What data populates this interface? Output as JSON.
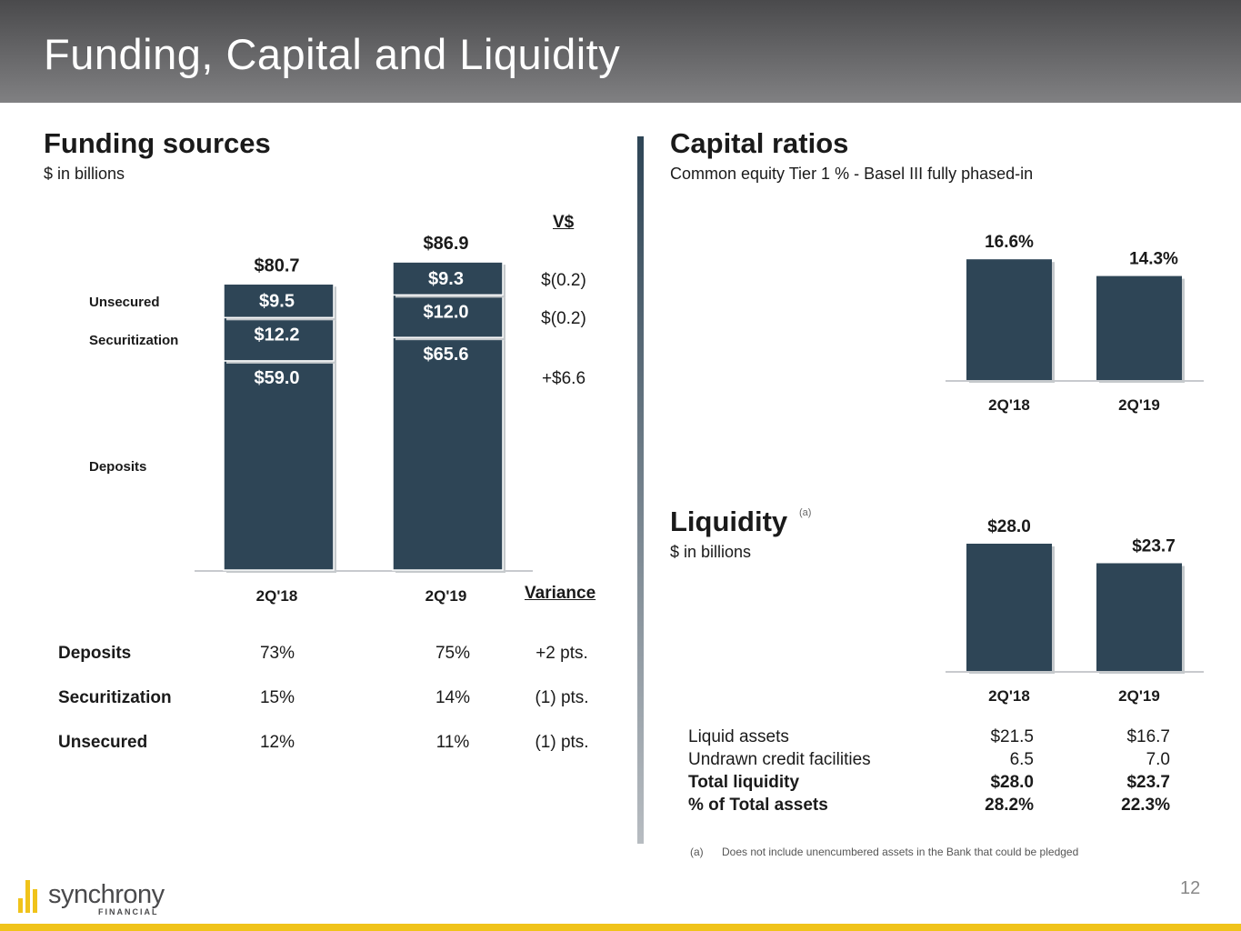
{
  "header": {
    "title": "Funding, Capital and Liquidity"
  },
  "funding": {
    "title": "Funding sources",
    "subtitle": "$ in billions",
    "v_label": "V$",
    "variance_header": "Variance",
    "table": [
      {
        "label": "Deposits",
        "values": [
          "73%",
          "75%"
        ],
        "variance": "+2 pts."
      },
      {
        "label": "Securitization",
        "values": [
          "15%",
          "14%"
        ],
        "variance": "(1) pts."
      },
      {
        "label": "Unsecured",
        "values": [
          "12%",
          "11%"
        ],
        "variance": "(1) pts."
      }
    ]
  },
  "capital": {
    "title": "Capital ratios",
    "subtitle": "Common equity Tier 1 % - Basel III fully phased-in"
  },
  "liquidity": {
    "title": "Liquidity",
    "title_note": "(a)",
    "subtitle": "$ in billions",
    "table": [
      {
        "label": "Liquid assets",
        "v1": "$21.5",
        "v2": "$16.7",
        "bold": false
      },
      {
        "label": "Undrawn credit facilities",
        "v1": "6.5",
        "v2": "7.0",
        "bold": false
      },
      {
        "label": "Total liquidity",
        "v1": "$28.0",
        "v2": "$23.7",
        "bold": true
      },
      {
        "label": "% of Total assets",
        "v1": "28.2%",
        "v2": "22.3%",
        "bold": true
      }
    ],
    "footnote_mark": "(a)",
    "footnote_text": "Does not include unencumbered assets in the Bank that could be pledged"
  },
  "footer": {
    "logo_text": "synchrony",
    "logo_sub": "FINANCIAL",
    "page_number": "12"
  },
  "colors": {
    "bar": "#2e4556",
    "accent": "#f0c31a"
  },
  "chart_data": [
    {
      "type": "bar",
      "stacked": true,
      "categories": [
        "2Q'18",
        "2Q'19"
      ],
      "series": [
        {
          "name": "Deposits",
          "values": [
            59.0,
            65.6
          ],
          "labels": [
            "$59.0",
            "$65.6"
          ]
        },
        {
          "name": "Securitization",
          "values": [
            12.2,
            12.0
          ],
          "labels": [
            "$12.2",
            "$12.0"
          ]
        },
        {
          "name": "Unsecured",
          "values": [
            9.5,
            9.3
          ],
          "labels": [
            "$9.5",
            "$9.3"
          ]
        }
      ],
      "totals": [
        "$80.7",
        "$86.9"
      ],
      "variance": [
        "+$6.6",
        "$(0.2)",
        "$(0.2)"
      ],
      "ylim": [
        0,
        90
      ]
    },
    {
      "type": "bar",
      "categories": [
        "2Q'18",
        "2Q'19"
      ],
      "values": [
        16.6,
        14.3
      ],
      "labels": [
        "16.6%",
        "14.3%"
      ],
      "ylim": [
        0,
        20
      ]
    },
    {
      "type": "bar",
      "categories": [
        "2Q'18",
        "2Q'19"
      ],
      "values": [
        28.0,
        23.7
      ],
      "labels": [
        "$28.0",
        "$23.7"
      ],
      "ylim": [
        0,
        32
      ]
    }
  ]
}
